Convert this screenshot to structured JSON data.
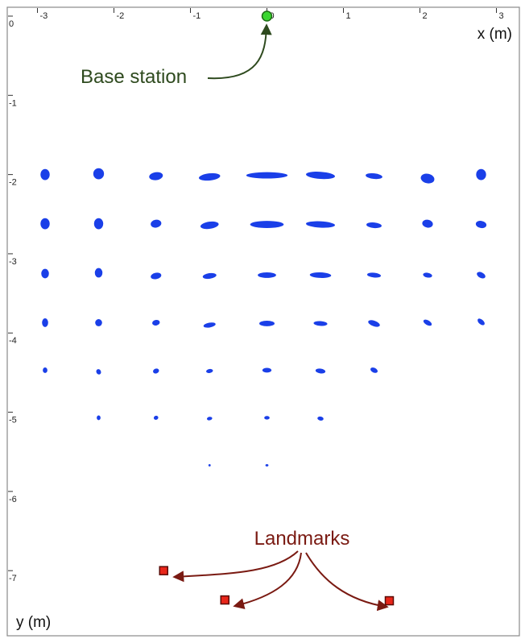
{
  "chart_data": {
    "type": "scatter",
    "xlabel": "x (m)",
    "ylabel": "y (m)",
    "xlim": [
      -3.3,
      3.3
    ],
    "ylim": [
      -7.7,
      0
    ],
    "x_ticks": [
      -3,
      -2,
      -1,
      0,
      1,
      2,
      3
    ],
    "y_ticks": [
      0,
      -1,
      -2,
      -3,
      -4,
      -5,
      -6,
      -7
    ],
    "x_tick_labels": [
      "-3",
      "-2",
      "-1",
      "0",
      "1",
      "2",
      "3"
    ],
    "y_tick_labels": [
      "0",
      "-1",
      "-2",
      "-3",
      "-4",
      "-5",
      "-6",
      "-7"
    ],
    "base_station": {
      "x": 0,
      "y": 0
    },
    "landmarks": [
      {
        "x": -1.35,
        "y": -7.0
      },
      {
        "x": -0.55,
        "y": -7.37
      },
      {
        "x": 1.6,
        "y": -7.38
      }
    ],
    "uncertainty_ellipses": [
      {
        "x": -2.9,
        "y": -2.0,
        "rx": 0.06,
        "ry": 0.07,
        "angle": 0
      },
      {
        "x": -2.2,
        "y": -1.99,
        "rx": 0.07,
        "ry": 0.07,
        "angle": 0
      },
      {
        "x": -1.45,
        "y": -2.02,
        "rx": 0.09,
        "ry": 0.05,
        "angle": -8
      },
      {
        "x": -0.75,
        "y": -2.03,
        "rx": 0.14,
        "ry": 0.045,
        "angle": -6
      },
      {
        "x": 0.0,
        "y": -2.01,
        "rx": 0.27,
        "ry": 0.04,
        "angle": 0
      },
      {
        "x": 0.7,
        "y": -2.01,
        "rx": 0.19,
        "ry": 0.045,
        "angle": 4
      },
      {
        "x": 1.4,
        "y": -2.02,
        "rx": 0.11,
        "ry": 0.035,
        "angle": 6
      },
      {
        "x": 2.1,
        "y": -2.05,
        "rx": 0.09,
        "ry": 0.06,
        "angle": 12
      },
      {
        "x": 2.8,
        "y": -2.0,
        "rx": 0.065,
        "ry": 0.07,
        "angle": 0
      },
      {
        "x": -2.9,
        "y": -2.62,
        "rx": 0.06,
        "ry": 0.07,
        "angle": 0
      },
      {
        "x": -2.2,
        "y": -2.62,
        "rx": 0.06,
        "ry": 0.07,
        "angle": 0
      },
      {
        "x": -1.45,
        "y": -2.62,
        "rx": 0.07,
        "ry": 0.05,
        "angle": -10
      },
      {
        "x": -0.75,
        "y": -2.64,
        "rx": 0.12,
        "ry": 0.045,
        "angle": -8
      },
      {
        "x": 0.0,
        "y": -2.63,
        "rx": 0.22,
        "ry": 0.045,
        "angle": 0
      },
      {
        "x": 0.7,
        "y": -2.63,
        "rx": 0.19,
        "ry": 0.04,
        "angle": 3
      },
      {
        "x": 1.4,
        "y": -2.64,
        "rx": 0.1,
        "ry": 0.035,
        "angle": 5
      },
      {
        "x": 2.1,
        "y": -2.62,
        "rx": 0.07,
        "ry": 0.05,
        "angle": 10
      },
      {
        "x": 2.8,
        "y": -2.63,
        "rx": 0.07,
        "ry": 0.045,
        "angle": 10
      },
      {
        "x": -2.9,
        "y": -3.25,
        "rx": 0.05,
        "ry": 0.06,
        "angle": 0
      },
      {
        "x": -2.2,
        "y": -3.24,
        "rx": 0.05,
        "ry": 0.06,
        "angle": 0
      },
      {
        "x": -1.45,
        "y": -3.28,
        "rx": 0.07,
        "ry": 0.04,
        "angle": -12
      },
      {
        "x": -0.75,
        "y": -3.28,
        "rx": 0.09,
        "ry": 0.035,
        "angle": -8
      },
      {
        "x": 0.0,
        "y": -3.27,
        "rx": 0.12,
        "ry": 0.035,
        "angle": 0
      },
      {
        "x": 0.7,
        "y": -3.27,
        "rx": 0.14,
        "ry": 0.035,
        "angle": 2
      },
      {
        "x": 1.4,
        "y": -3.27,
        "rx": 0.09,
        "ry": 0.03,
        "angle": 6
      },
      {
        "x": 2.1,
        "y": -3.27,
        "rx": 0.06,
        "ry": 0.03,
        "angle": 10
      },
      {
        "x": 2.8,
        "y": -3.27,
        "rx": 0.06,
        "ry": 0.035,
        "angle": 28
      },
      {
        "x": -2.9,
        "y": -3.87,
        "rx": 0.04,
        "ry": 0.055,
        "angle": 0
      },
      {
        "x": -2.2,
        "y": -3.87,
        "rx": 0.045,
        "ry": 0.045,
        "angle": 0
      },
      {
        "x": -1.45,
        "y": -3.87,
        "rx": 0.05,
        "ry": 0.035,
        "angle": -12
      },
      {
        "x": -0.75,
        "y": -3.9,
        "rx": 0.08,
        "ry": 0.03,
        "angle": -10
      },
      {
        "x": 0.0,
        "y": -3.88,
        "rx": 0.1,
        "ry": 0.035,
        "angle": 0
      },
      {
        "x": 0.7,
        "y": -3.88,
        "rx": 0.09,
        "ry": 0.03,
        "angle": 4
      },
      {
        "x": 1.4,
        "y": -3.88,
        "rx": 0.08,
        "ry": 0.035,
        "angle": 20
      },
      {
        "x": 2.1,
        "y": -3.87,
        "rx": 0.06,
        "ry": 0.03,
        "angle": 30
      },
      {
        "x": 2.8,
        "y": -3.86,
        "rx": 0.055,
        "ry": 0.03,
        "angle": 40
      },
      {
        "x": -2.9,
        "y": -4.47,
        "rx": 0.03,
        "ry": 0.035,
        "angle": 0
      },
      {
        "x": -2.2,
        "y": -4.49,
        "rx": 0.03,
        "ry": 0.035,
        "angle": -30
      },
      {
        "x": -1.45,
        "y": -4.48,
        "rx": 0.04,
        "ry": 0.03,
        "angle": -20
      },
      {
        "x": -0.75,
        "y": -4.48,
        "rx": 0.045,
        "ry": 0.025,
        "angle": -10
      },
      {
        "x": 0.0,
        "y": -4.47,
        "rx": 0.06,
        "ry": 0.03,
        "angle": 0
      },
      {
        "x": 0.7,
        "y": -4.48,
        "rx": 0.065,
        "ry": 0.03,
        "angle": 8
      },
      {
        "x": 1.4,
        "y": -4.47,
        "rx": 0.05,
        "ry": 0.03,
        "angle": 25
      },
      {
        "x": -2.2,
        "y": -5.07,
        "rx": 0.025,
        "ry": 0.03,
        "angle": 0
      },
      {
        "x": -1.45,
        "y": -5.07,
        "rx": 0.03,
        "ry": 0.025,
        "angle": -20
      },
      {
        "x": -0.75,
        "y": -5.08,
        "rx": 0.035,
        "ry": 0.022,
        "angle": -10
      },
      {
        "x": 0.0,
        "y": -5.07,
        "rx": 0.035,
        "ry": 0.022,
        "angle": 0
      },
      {
        "x": 0.7,
        "y": -5.08,
        "rx": 0.04,
        "ry": 0.025,
        "angle": 10
      },
      {
        "x": -0.75,
        "y": -5.67,
        "rx": 0.015,
        "ry": 0.015,
        "angle": 0
      },
      {
        "x": 0.0,
        "y": -5.67,
        "rx": 0.02,
        "ry": 0.015,
        "angle": 0
      }
    ],
    "annotations": [
      {
        "text": "Base station",
        "target": "base_station"
      },
      {
        "text": "Landmarks",
        "target": "landmarks"
      }
    ],
    "colors": {
      "ellipse": "#1a3fe8",
      "base_station": "#3ad630",
      "base_station_stroke": "#1d6b14",
      "landmark": "#e8261a",
      "landmark_stroke": "#5a0a05",
      "base_annotation": "#2e4a1e",
      "landmark_annotation": "#7a1a12"
    },
    "grid": false,
    "legend": "none"
  }
}
